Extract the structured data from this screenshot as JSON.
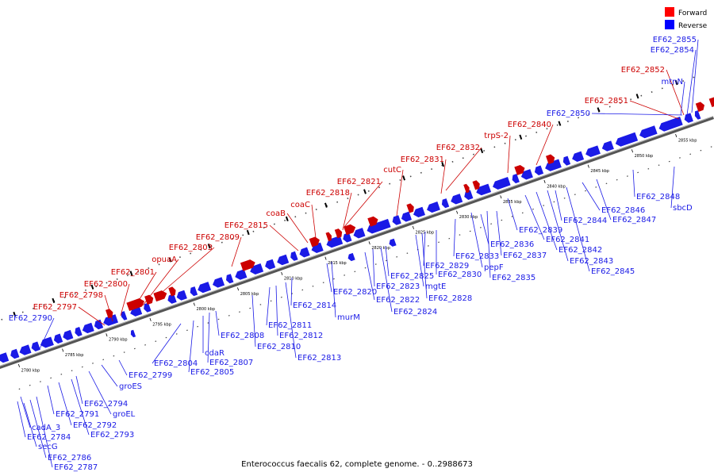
{
  "caption": "Enterococcus faecalis 62, complete genome. - 0..2988673",
  "legend": {
    "forward": "Forward",
    "reverse": "Reverse"
  },
  "colors": {
    "forward": "#cc0000",
    "reverse": "#1a1ae6",
    "backbone": "#888888"
  },
  "ticks": [
    "2780 kbp",
    "2785 kbp",
    "2790 kbp",
    "2795 kbp",
    "2800 kbp",
    "2805 kbp",
    "2810 kbp",
    "2815 kbp",
    "2820 kbp",
    "2825 kbp",
    "2830 kbp",
    "2835 kbp",
    "2840 kbp",
    "2845 kbp",
    "2850 kbp",
    "2855 kbp"
  ],
  "forward_genes": [
    "EF62_2797",
    "EF62_2798",
    "EF62_2800",
    "EF62_2801",
    "opuaA",
    "EF62_2803",
    "EF62_2809",
    "EF62_2815",
    "coaB",
    "coaC",
    "EF62_2818",
    "EF62_2821",
    "cutC",
    "EF62_2831",
    "EF62_2832",
    "trpS-2",
    "EF62_2840",
    "EF62_2851",
    "EF62_2852"
  ],
  "reverse_genes_top": [
    "EF62_2790",
    "EF62_2850",
    "mtnN",
    "EF62_2854",
    "EF62_2855"
  ],
  "reverse_genes_bottom": [
    "cadA_3",
    "EF62_2784",
    "secG",
    "EF62_2786",
    "EF62_2787",
    "EF62_2791",
    "EF62_2792",
    "EF62_2793",
    "EF62_2794",
    "groEL",
    "groES",
    "EF62_2799",
    "EF62_2804",
    "EF62_2805",
    "cdaR",
    "EF62_2807",
    "EF62_2808",
    "EF62_2810",
    "EF62_2811",
    "EF62_2812",
    "EF62_2813",
    "EF62_2814",
    "murM",
    "EF62_2820",
    "EF62_2822",
    "EF62_2823",
    "EF62_2824",
    "EF62_2825",
    "mgtE",
    "EF62_2828",
    "EF62_2829",
    "EF62_2830",
    "EF62_2833",
    "pepF",
    "EF62_2835",
    "EF62_2836",
    "EF62_2837",
    "EF62_2839",
    "EF62_2841",
    "EF62_2842",
    "EF62_2843",
    "EF62_2844",
    "EF62_2845",
    "EF62_2846",
    "EF62_2847",
    "EF62_2848",
    "sbcD"
  ]
}
